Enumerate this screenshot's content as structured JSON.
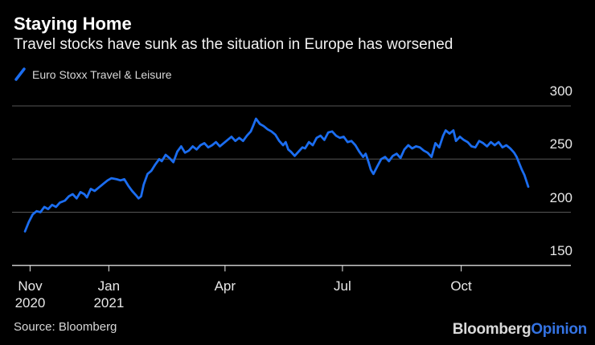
{
  "header": {
    "title": "Staying Home",
    "subtitle": "Travel stocks have sunk as the situation in Europe has worsened"
  },
  "legend": {
    "series_label": "Euro Stoxx Travel & Leisure"
  },
  "source": "Source: Bloomberg",
  "branding": {
    "bloomberg": "Bloomberg",
    "opinion": "Opinion"
  },
  "colors": {
    "background": "#000000",
    "line": "#1b6df0",
    "grid": "#565656",
    "axis": "#c8c8c8",
    "title_text": "#ffffff",
    "subtitle_text": "#f1f1f1",
    "muted_text": "#d8d8d8",
    "axis_text": "#e8e8e8",
    "opinion_blue": "#3473e3"
  },
  "chart_data": {
    "type": "line",
    "title": "Staying Home",
    "xlabel": "",
    "ylabel": "",
    "grid": "horizontal",
    "legend_position": "top-left",
    "ylim": [
      150,
      300
    ],
    "x_domain": [
      "2020-10-18",
      "2021-12-25"
    ],
    "yticks": [
      {
        "value": 300,
        "label": "300"
      },
      {
        "value": 250,
        "label": "250"
      },
      {
        "value": 200,
        "label": "200"
      },
      {
        "value": 150,
        "label": "150"
      }
    ],
    "xticks": [
      {
        "date": "2020-11-01",
        "line1": "Nov",
        "line2": "2020"
      },
      {
        "date": "2021-01-01",
        "line1": "Jan",
        "line2": "2021"
      },
      {
        "date": "2021-04-01",
        "line1": "Apr",
        "line2": ""
      },
      {
        "date": "2021-07-01",
        "line1": "Jul",
        "line2": ""
      },
      {
        "date": "2021-10-01",
        "line1": "Oct",
        "line2": ""
      }
    ],
    "series": [
      {
        "name": "Euro Stoxx Travel & Leisure",
        "points": [
          [
            "2020-10-28",
            182
          ],
          [
            "2020-10-31",
            191
          ],
          [
            "2020-11-03",
            198
          ],
          [
            "2020-11-06",
            201
          ],
          [
            "2020-11-09",
            200
          ],
          [
            "2020-11-12",
            205
          ],
          [
            "2020-11-15",
            203
          ],
          [
            "2020-11-18",
            207
          ],
          [
            "2020-11-21",
            205
          ],
          [
            "2020-11-24",
            209
          ],
          [
            "2020-11-28",
            211
          ],
          [
            "2020-12-01",
            215
          ],
          [
            "2020-12-04",
            217
          ],
          [
            "2020-12-07",
            213
          ],
          [
            "2020-12-10",
            219
          ],
          [
            "2020-12-13",
            217
          ],
          [
            "2020-12-15",
            214
          ],
          [
            "2020-12-18",
            222
          ],
          [
            "2020-12-21",
            220
          ],
          [
            "2020-12-25",
            224
          ],
          [
            "2020-12-28",
            227
          ],
          [
            "2020-12-31",
            230
          ],
          [
            "2021-01-03",
            232
          ],
          [
            "2021-01-07",
            231
          ],
          [
            "2021-01-10",
            230
          ],
          [
            "2021-01-13",
            231
          ],
          [
            "2021-01-16",
            225
          ],
          [
            "2021-01-19",
            220
          ],
          [
            "2021-01-22",
            216
          ],
          [
            "2021-01-24",
            213
          ],
          [
            "2021-01-26",
            215
          ],
          [
            "2021-01-28",
            226
          ],
          [
            "2021-01-31",
            236
          ],
          [
            "2021-02-03",
            239
          ],
          [
            "2021-02-06",
            245
          ],
          [
            "2021-02-09",
            250
          ],
          [
            "2021-02-11",
            248
          ],
          [
            "2021-02-14",
            254
          ],
          [
            "2021-02-17",
            251
          ],
          [
            "2021-02-20",
            247
          ],
          [
            "2021-02-23",
            257
          ],
          [
            "2021-02-26",
            262
          ],
          [
            "2021-03-01",
            256
          ],
          [
            "2021-03-04",
            258
          ],
          [
            "2021-03-07",
            262
          ],
          [
            "2021-03-10",
            259
          ],
          [
            "2021-03-13",
            263
          ],
          [
            "2021-03-16",
            265
          ],
          [
            "2021-03-19",
            261
          ],
          [
            "2021-03-22",
            263
          ],
          [
            "2021-03-25",
            266
          ],
          [
            "2021-03-28",
            262
          ],
          [
            "2021-03-31",
            265
          ],
          [
            "2021-04-03",
            268
          ],
          [
            "2021-04-06",
            271
          ],
          [
            "2021-04-09",
            267
          ],
          [
            "2021-04-12",
            270
          ],
          [
            "2021-04-15",
            267
          ],
          [
            "2021-04-18",
            272
          ],
          [
            "2021-04-21",
            276
          ],
          [
            "2021-04-23",
            282
          ],
          [
            "2021-04-25",
            288
          ],
          [
            "2021-04-28",
            283
          ],
          [
            "2021-05-01",
            281
          ],
          [
            "2021-05-04",
            278
          ],
          [
            "2021-05-07",
            276
          ],
          [
            "2021-05-10",
            273
          ],
          [
            "2021-05-13",
            267
          ],
          [
            "2021-05-16",
            263
          ],
          [
            "2021-05-18",
            266
          ],
          [
            "2021-05-20",
            259
          ],
          [
            "2021-05-22",
            257
          ],
          [
            "2021-05-25",
            253
          ],
          [
            "2021-05-28",
            257
          ],
          [
            "2021-05-31",
            261
          ],
          [
            "2021-06-02",
            260
          ],
          [
            "2021-06-05",
            266
          ],
          [
            "2021-06-08",
            263
          ],
          [
            "2021-06-11",
            270
          ],
          [
            "2021-06-14",
            272
          ],
          [
            "2021-06-17",
            268
          ],
          [
            "2021-06-20",
            275
          ],
          [
            "2021-06-23",
            276
          ],
          [
            "2021-06-26",
            272
          ],
          [
            "2021-06-29",
            270
          ],
          [
            "2021-07-02",
            271
          ],
          [
            "2021-07-05",
            266
          ],
          [
            "2021-07-08",
            267
          ],
          [
            "2021-07-11",
            263
          ],
          [
            "2021-07-14",
            257
          ],
          [
            "2021-07-17",
            252
          ],
          [
            "2021-07-19",
            255
          ],
          [
            "2021-07-21",
            248
          ],
          [
            "2021-07-23",
            240
          ],
          [
            "2021-07-25",
            236
          ],
          [
            "2021-07-28",
            243
          ],
          [
            "2021-07-31",
            250
          ],
          [
            "2021-08-03",
            252
          ],
          [
            "2021-08-06",
            248
          ],
          [
            "2021-08-09",
            253
          ],
          [
            "2021-08-12",
            255
          ],
          [
            "2021-08-15",
            251
          ],
          [
            "2021-08-18",
            259
          ],
          [
            "2021-08-21",
            263
          ],
          [
            "2021-08-24",
            260
          ],
          [
            "2021-08-27",
            262
          ],
          [
            "2021-08-30",
            261
          ],
          [
            "2021-09-02",
            258
          ],
          [
            "2021-09-05",
            256
          ],
          [
            "2021-09-08",
            252
          ],
          [
            "2021-09-11",
            265
          ],
          [
            "2021-09-14",
            261
          ],
          [
            "2021-09-17",
            272
          ],
          [
            "2021-09-19",
            277
          ],
          [
            "2021-09-22",
            274
          ],
          [
            "2021-09-25",
            277
          ],
          [
            "2021-09-27",
            267
          ],
          [
            "2021-09-30",
            271
          ],
          [
            "2021-10-03",
            268
          ],
          [
            "2021-10-06",
            266
          ],
          [
            "2021-10-09",
            262
          ],
          [
            "2021-10-12",
            261
          ],
          [
            "2021-10-15",
            267
          ],
          [
            "2021-10-18",
            265
          ],
          [
            "2021-10-21",
            262
          ],
          [
            "2021-10-24",
            266
          ],
          [
            "2021-10-27",
            263
          ],
          [
            "2021-10-30",
            266
          ],
          [
            "2021-11-02",
            261
          ],
          [
            "2021-11-05",
            263
          ],
          [
            "2021-11-08",
            260
          ],
          [
            "2021-11-11",
            256
          ],
          [
            "2021-11-13",
            252
          ],
          [
            "2021-11-15",
            246
          ],
          [
            "2021-11-17",
            240
          ],
          [
            "2021-11-19",
            235
          ],
          [
            "2021-11-22",
            224
          ]
        ]
      }
    ]
  }
}
